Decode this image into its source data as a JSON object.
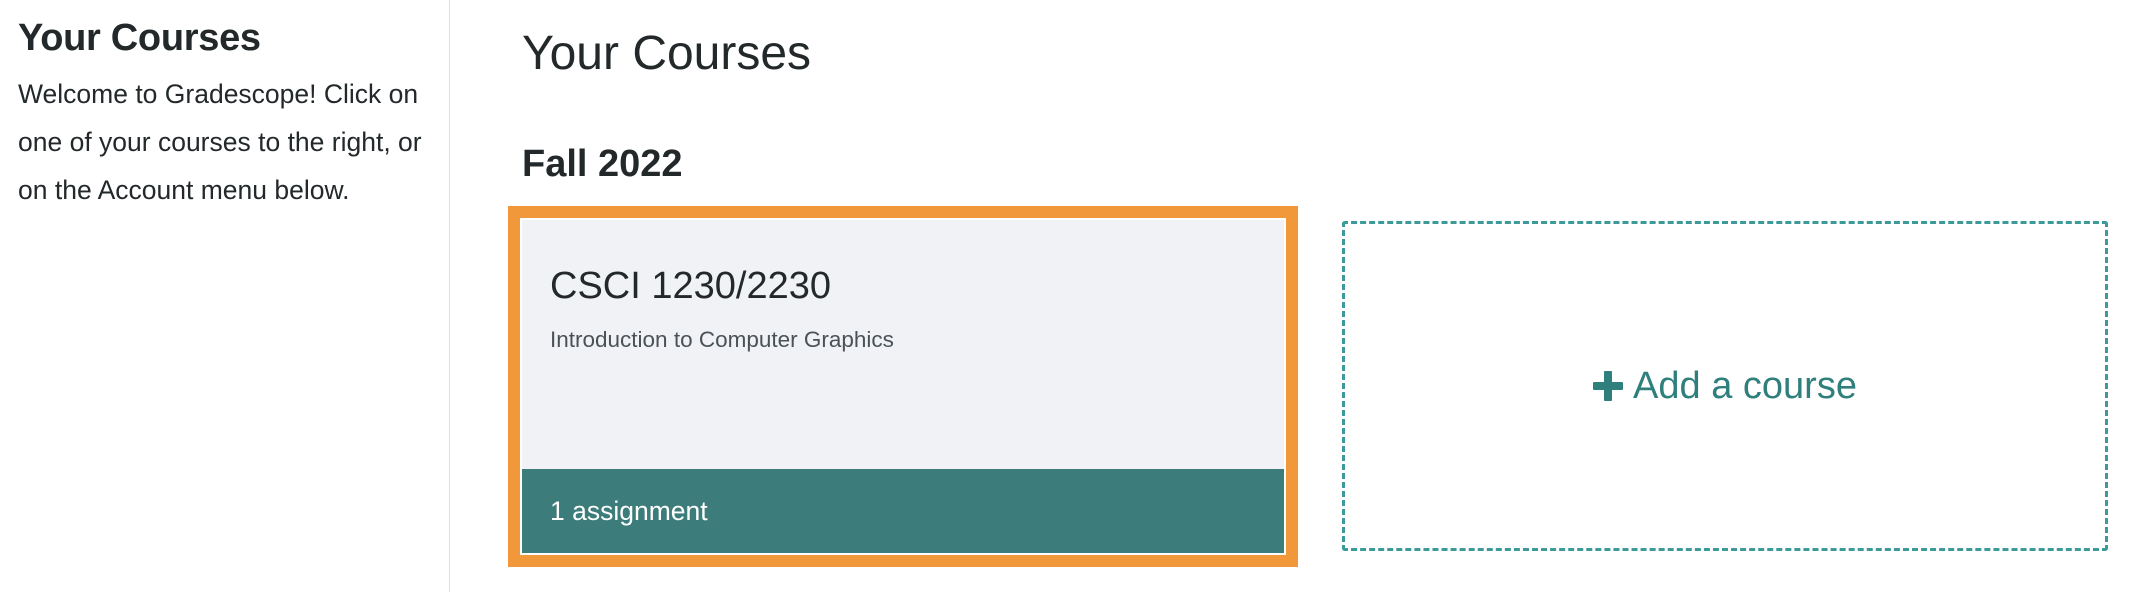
{
  "sidebar": {
    "title": "Your Courses",
    "welcome": "Welcome to Gradescope! Click on one of your courses to the right, or on the Account menu below."
  },
  "main": {
    "title": "Your Courses",
    "terms": [
      {
        "name": "Fall 2022",
        "courses": [
          {
            "short_name": "CSCI 1230/2230",
            "full_name": "Introduction to Computer Graphics",
            "assignments": "1 assignment"
          }
        ]
      }
    ],
    "add_course_label": "Add a course",
    "add_course_icon": "plus-icon"
  },
  "colors": {
    "accent": "#3c7d7b",
    "highlight": "#f0983a",
    "card_background": "#f1f2f5"
  }
}
